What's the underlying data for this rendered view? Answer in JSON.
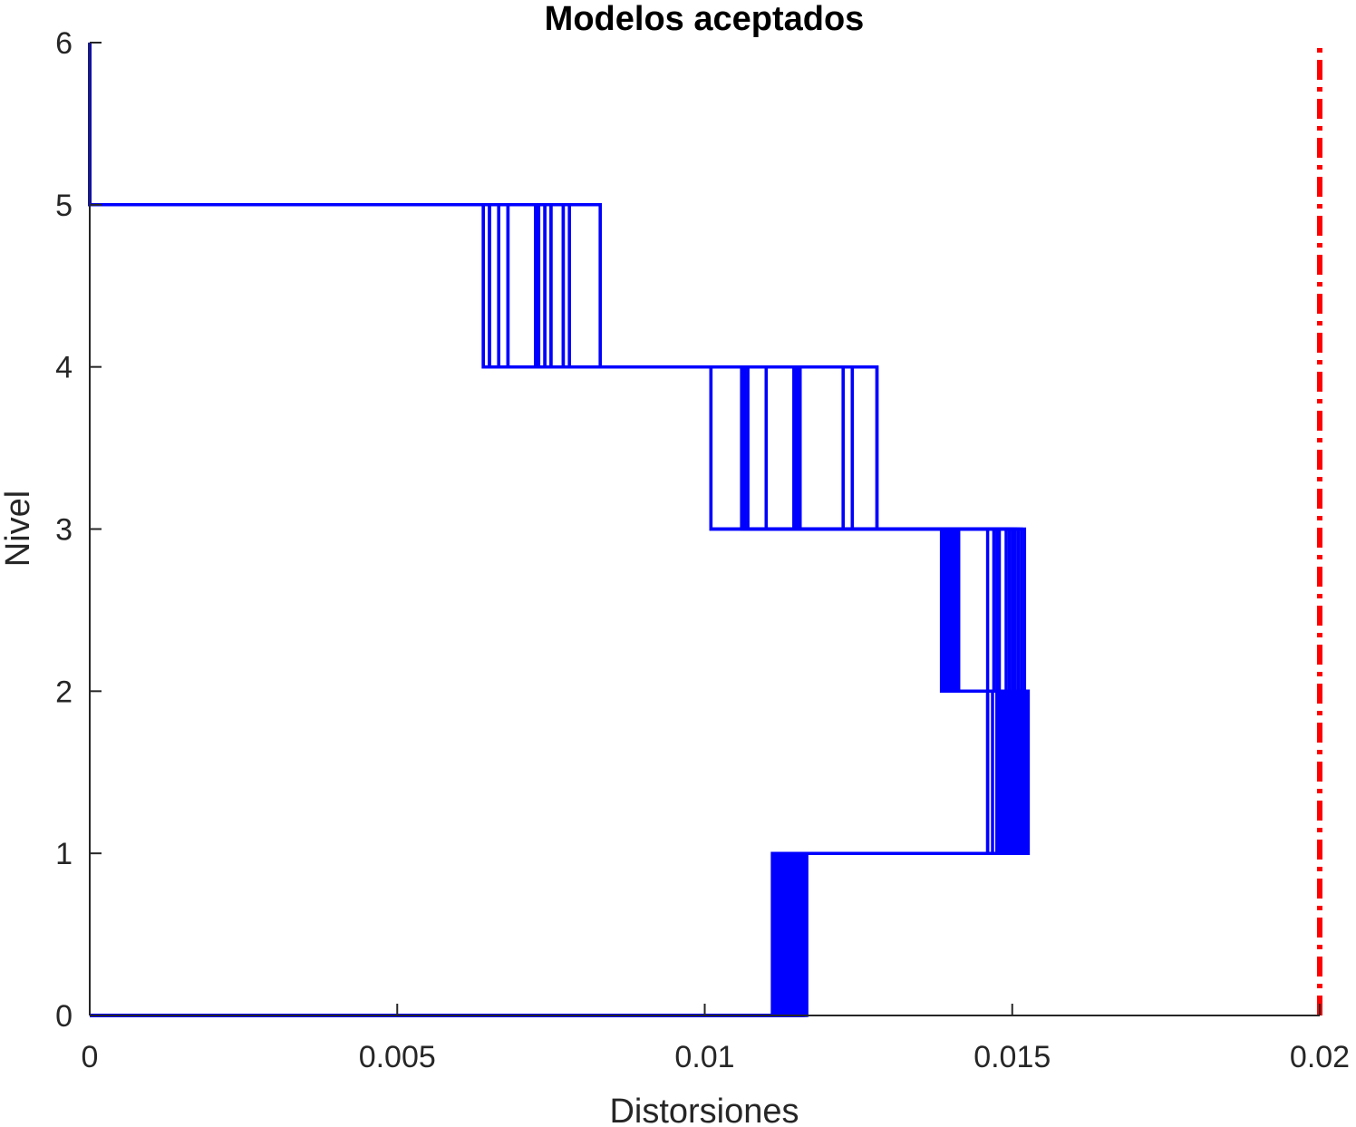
{
  "chart_data": {
    "type": "line",
    "title": "Modelos aceptados",
    "xlabel": "Distorsiones",
    "ylabel": "Nivel",
    "xlim": [
      0,
      0.02
    ],
    "ylim": [
      0,
      6
    ],
    "xticks": [
      0,
      0.005,
      0.01,
      0.015,
      0.02
    ],
    "xtick_labels": [
      "0",
      "0.005",
      "0.01",
      "0.015",
      "0.02"
    ],
    "yticks": [
      0,
      1,
      2,
      3,
      4,
      5,
      6
    ],
    "ytick_labels": [
      "0",
      "1",
      "2",
      "3",
      "4",
      "5",
      "6"
    ],
    "grid": false,
    "legend": "none",
    "series_color": "#0000ff",
    "limit_color": "#ff0000",
    "limit_line": {
      "x": 0.02,
      "style": "dash-dot"
    },
    "level_drifts": {
      "level_1": [
        0.0111,
        0.01112,
        0.01115,
        0.01118,
        0.0112,
        0.01122,
        0.01125,
        0.01128,
        0.0113,
        0.01132,
        0.01135,
        0.01138,
        0.0114,
        0.01142,
        0.01145,
        0.01148,
        0.0115,
        0.01152,
        0.01155,
        0.01158,
        0.0116,
        0.01163,
        0.01166
      ],
      "level_2": [
        0.0146,
        0.01468,
        0.01475,
        0.01478,
        0.0148,
        0.01483,
        0.01485,
        0.01488,
        0.0149,
        0.01493,
        0.01495,
        0.01498,
        0.015,
        0.01503,
        0.01506,
        0.0151,
        0.01512,
        0.01515,
        0.01518,
        0.0152,
        0.01523,
        0.01526
      ],
      "level_3": [
        0.01385,
        0.01388,
        0.0139,
        0.01393,
        0.01396,
        0.014,
        0.01403,
        0.01406,
        0.0141,
        0.01413,
        0.0146,
        0.0147,
        0.01475,
        0.01479,
        0.0149,
        0.01495,
        0.015,
        0.01505,
        0.0151,
        0.01515,
        0.0152
      ],
      "level_4": [
        0.0101,
        0.0106,
        0.01065,
        0.0107,
        0.011,
        0.01145,
        0.0115,
        0.01155,
        0.01225,
        0.0124,
        0.0128
      ],
      "level_5": [
        0.0064,
        0.0065,
        0.00665,
        0.0068,
        0.00725,
        0.0073,
        0.0074,
        0.0075,
        0.0077,
        0.0078,
        0.0083
      ],
      "level_6": [
        0,
        0,
        0,
        0,
        0,
        0,
        0,
        0,
        0,
        0,
        0
      ]
    }
  }
}
